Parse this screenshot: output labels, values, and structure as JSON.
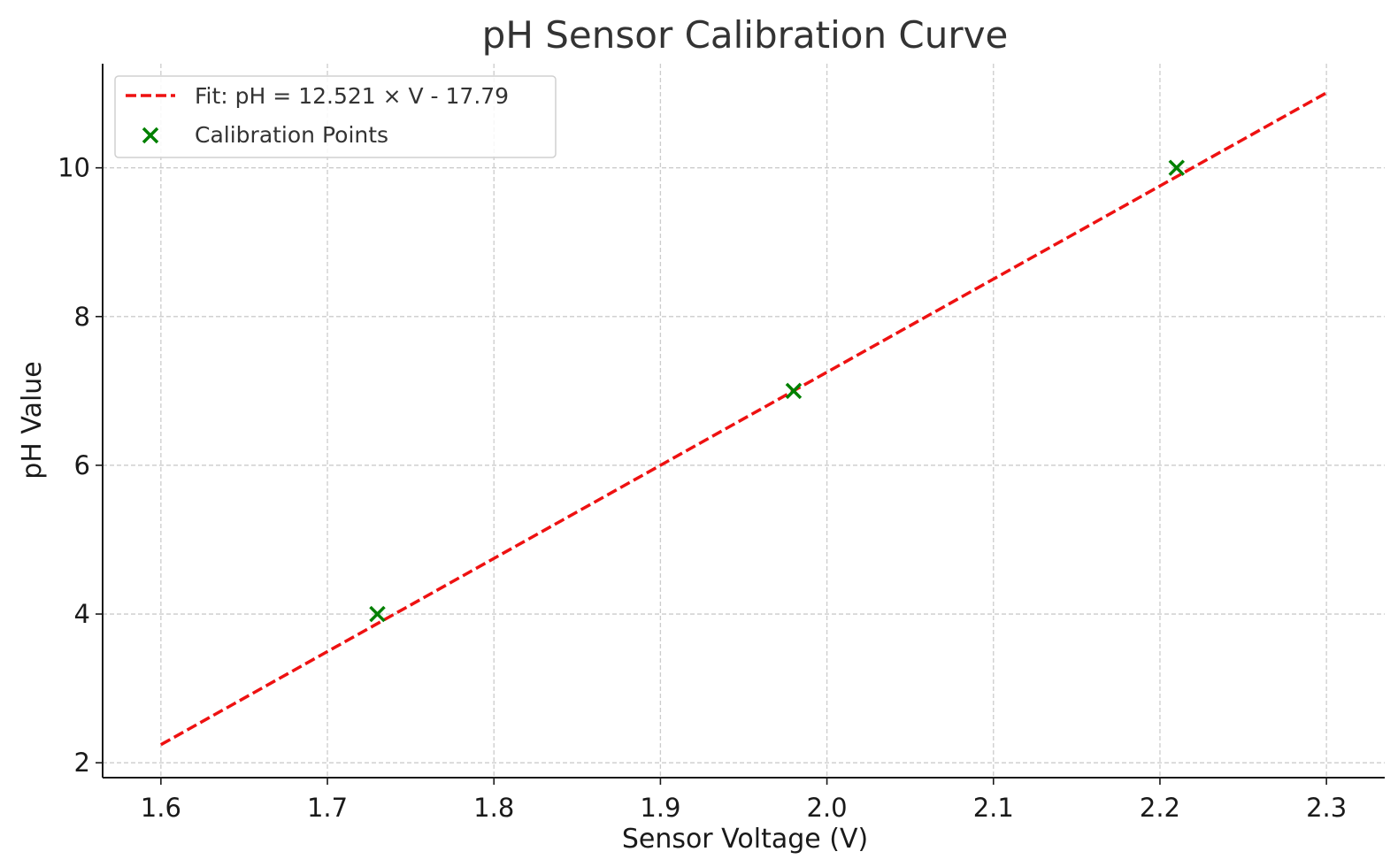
{
  "chart_data": {
    "type": "scatter",
    "title": "pH Sensor Calibration Curve",
    "xlabel": "Sensor Voltage (V)",
    "ylabel": "pH Value",
    "xlim": [
      1.565,
      2.335
    ],
    "ylim": [
      1.8,
      11.4
    ],
    "xticks": [
      1.6,
      1.7,
      1.8,
      1.9,
      2.0,
      2.1,
      2.2,
      2.3
    ],
    "xtick_labels": [
      "1.6",
      "1.7",
      "1.8",
      "1.9",
      "2.0",
      "2.1",
      "2.2",
      "2.3"
    ],
    "yticks": [
      2,
      4,
      6,
      8,
      10
    ],
    "ytick_labels": [
      "2",
      "4",
      "6",
      "8",
      "10"
    ],
    "grid": true,
    "legend_position": "top-left",
    "series": [
      {
        "name": "Fit: pH = 12.521 × V - 17.79",
        "kind": "line",
        "style": "dashed",
        "color": "#ee1111",
        "slope": 12.521,
        "intercept": -17.79,
        "x": [
          1.6,
          2.3
        ],
        "y": [
          2.24,
          11.01
        ]
      },
      {
        "name": "Calibration Points",
        "kind": "scatter",
        "marker": "x",
        "color": "#008000",
        "x": [
          1.73,
          1.98,
          2.21
        ],
        "y": [
          4.0,
          7.0,
          10.0
        ]
      }
    ]
  }
}
